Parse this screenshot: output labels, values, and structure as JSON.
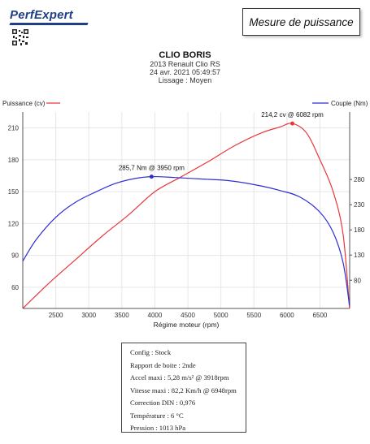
{
  "header": {
    "logo_text": "PerfExpert",
    "report_title": "Mesure de puissance",
    "vehicle_name": "CLIO BORIS",
    "vehicle_model": "2013 Renault Clio RS",
    "timestamp": "24 avr. 2021 05:49:57",
    "smoothing": "Lissage : Moyen"
  },
  "colors": {
    "power": "#e8373a",
    "torque": "#2c2fd0",
    "brand": "#1f3f86"
  },
  "chart_data": {
    "type": "line",
    "xlabel": "Régime moteur (rpm)",
    "x_ticks": [
      2500,
      3000,
      3500,
      4000,
      4500,
      5000,
      5500,
      6000,
      6500
    ],
    "xlim": [
      2000,
      6950
    ],
    "left_axis": {
      "label": "Puissance (cv)",
      "ticks": [
        60,
        90,
        120,
        150,
        180,
        210
      ],
      "ylim": [
        40,
        225
      ]
    },
    "right_axis": {
      "label": "Couple (Nm)",
      "ticks": [
        80,
        130,
        180,
        230,
        280
      ],
      "ylim": [
        24,
        414
      ]
    },
    "series": [
      {
        "name": "Puissance (cv)",
        "axis": "left",
        "color": "#e8373a",
        "x": [
          2000,
          2400,
          2800,
          3200,
          3600,
          4000,
          4400,
          4800,
          5200,
          5600,
          5900,
          6082,
          6300,
          6500,
          6700,
          6850,
          6948
        ],
        "y": [
          40,
          64,
          86,
          108,
          128,
          150,
          164,
          178,
          193,
          205,
          211,
          214.2,
          205,
          180,
          150,
          110,
          40
        ]
      },
      {
        "name": "Couple (Nm)",
        "axis": "right",
        "color": "#2c2fd0",
        "x": [
          2000,
          2200,
          2500,
          2800,
          3100,
          3400,
          3700,
          3950,
          4300,
          4700,
          5100,
          5500,
          5900,
          6200,
          6500,
          6700,
          6850,
          6948
        ],
        "y": [
          118,
          160,
          205,
          235,
          255,
          272,
          282,
          285.7,
          284,
          281,
          278,
          270,
          258,
          245,
          215,
          175,
          115,
          30
        ]
      }
    ],
    "annotations": [
      {
        "text": "214,2 cv @ 6082 rpm",
        "series": "Puissance (cv)",
        "x": 6082,
        "y": 214.2
      },
      {
        "text": "285,7 Nm @ 3950 rpm",
        "series": "Couple (Nm)",
        "x": 3950,
        "y": 285.7
      }
    ],
    "grid": true,
    "legend": "top"
  },
  "info": {
    "lines": [
      "Config : Stock",
      "Rapport de boite : 2nde",
      "Accel maxi : 5,28 m/s² @ 3918rpm",
      "Vitesse maxi : 82,2 Km/h @ 6948rpm",
      "Correction DIN : 0,976",
      "Température : 6 °C",
      "Pression : 1013 hPa"
    ]
  }
}
